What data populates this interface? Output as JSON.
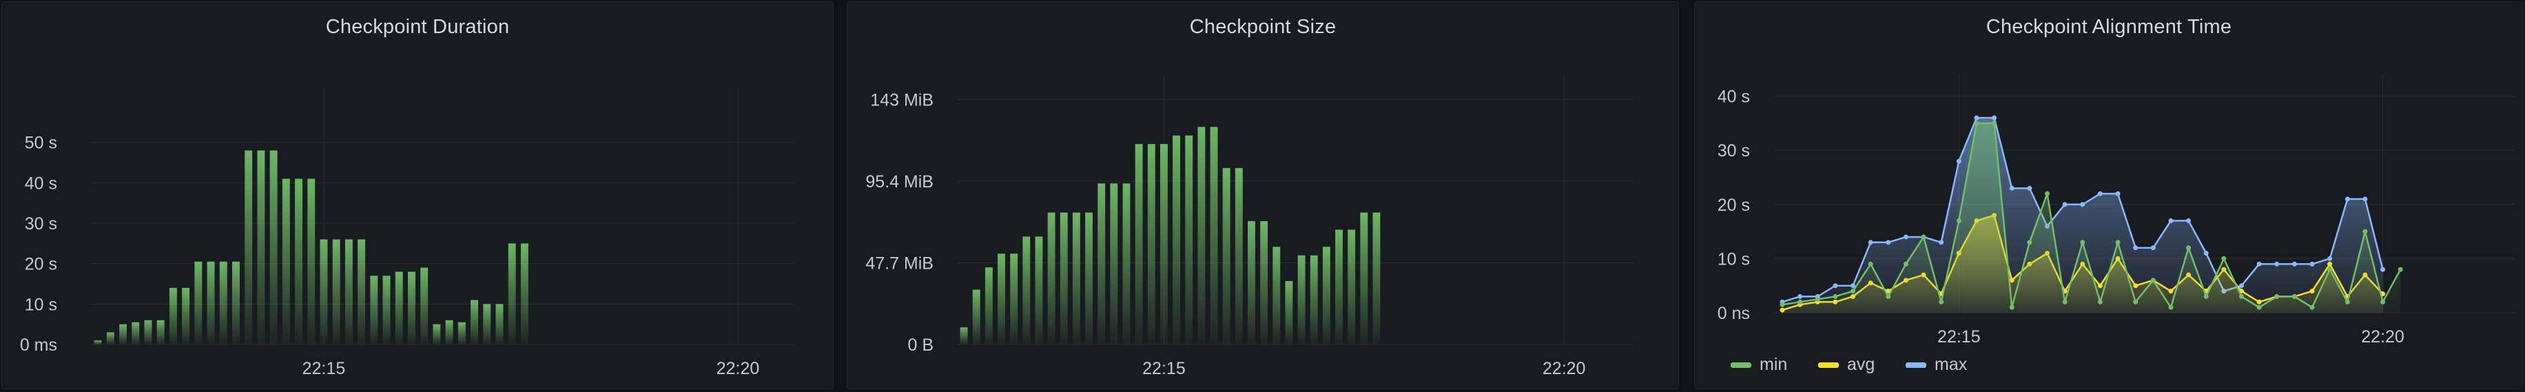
{
  "panels": [
    {
      "title": "Checkpoint Duration",
      "chart_data": {
        "type": "bar",
        "yunit": "s",
        "ylim": [
          0,
          60
        ],
        "yticks": [
          {
            "v": 0,
            "label": "0 ms"
          },
          {
            "v": 10,
            "label": "10 s"
          },
          {
            "v": 20,
            "label": "20 s"
          },
          {
            "v": 30,
            "label": "30 s"
          },
          {
            "v": 40,
            "label": "40 s"
          },
          {
            "v": 50,
            "label": "50 s"
          }
        ],
        "xticks": [
          {
            "index": 18,
            "label": "22:15"
          },
          {
            "index": 51,
            "label": "22:20"
          }
        ],
        "n_slots": 56,
        "values": [
          1,
          3,
          5,
          5.5,
          6,
          6,
          14,
          14,
          20.5,
          20.5,
          20.5,
          20.5,
          48,
          48,
          48,
          41,
          41,
          41,
          26,
          26,
          26,
          26,
          17,
          17,
          18,
          18,
          19,
          5,
          6,
          5.5,
          11,
          10,
          10,
          25,
          25
        ],
        "start_slot": 0,
        "color": "#73bf69",
        "grid": true,
        "legend": "none"
      }
    },
    {
      "title": "Checkpoint Size",
      "chart_data": {
        "type": "bar",
        "yunit": "MiB",
        "ylim": [
          0,
          150
        ],
        "yticks": [
          {
            "v": 0,
            "label": "0 B"
          },
          {
            "v": 47.7,
            "label": "47.7 MiB"
          },
          {
            "v": 95.4,
            "label": "95.4 MiB"
          },
          {
            "v": 143,
            "label": "143 MiB"
          }
        ],
        "xticks": [
          {
            "index": 16,
            "label": "22:15"
          },
          {
            "index": 48,
            "label": "22:20"
          }
        ],
        "n_slots": 54,
        "values": [
          10,
          32,
          45,
          53,
          53,
          63,
          63,
          77,
          77,
          77,
          77,
          94,
          94,
          94,
          117,
          117,
          117,
          122,
          122,
          127,
          127,
          103,
          103,
          72,
          72,
          57,
          37,
          52,
          52,
          57,
          67,
          67,
          77,
          77
        ],
        "start_slot": 0,
        "color": "#73bf69",
        "grid": true,
        "legend": "none"
      }
    },
    {
      "title": "Checkpoint Alignment Time",
      "chart_data": {
        "type": "area",
        "yunit": "s",
        "ylim": [
          0,
          43
        ],
        "yticks": [
          {
            "v": 0,
            "label": "0 ns"
          },
          {
            "v": 10,
            "label": "10 s"
          },
          {
            "v": 20,
            "label": "20 s"
          },
          {
            "v": 30,
            "label": "30 s"
          },
          {
            "v": 40,
            "label": "40 s"
          }
        ],
        "xticks": [
          {
            "index": 10,
            "label": "22:15"
          },
          {
            "index": 34,
            "label": "22:20"
          }
        ],
        "x_count": 42,
        "series": [
          {
            "name": "min",
            "color": "#73bf69",
            "values": [
              1.5,
              2,
              2.5,
              3,
              4,
              9,
              3,
              9,
              14,
              2,
              17,
              35,
              35,
              1,
              13,
              22,
              2,
              13,
              2,
              13,
              2,
              6,
              1,
              12,
              3,
              10,
              3,
              1,
              3,
              3,
              1,
              8,
              2,
              15,
              2,
              8,
              0,
              0,
              0,
              0,
              0,
              0
            ]
          },
          {
            "name": "avg",
            "color": "#fade2a",
            "values": [
              0.5,
              1.5,
              2,
              2,
              3,
              5.5,
              4,
              6,
              7,
              3.5,
              11,
              17,
              18,
              6,
              9,
              11,
              4,
              9,
              5,
              10,
              5,
              6,
              4,
              7,
              4,
              8,
              4,
              2,
              3,
              3,
              4,
              9,
              3,
              7,
              3.5,
              0,
              0,
              0,
              0,
              0,
              0,
              0
            ]
          },
          {
            "name": "max",
            "color": "#8ab8ff",
            "values": [
              2,
              3,
              3,
              5,
              5,
              13,
              13,
              14,
              14,
              13,
              28,
              36,
              36,
              23,
              23,
              16,
              20,
              20,
              22,
              22,
              12,
              12,
              17,
              17,
              11,
              4,
              5,
              9,
              9,
              9,
              9,
              10,
              21,
              21,
              8,
              0,
              0,
              0,
              0,
              0,
              0,
              0
            ]
          }
        ],
        "legend": "bottom-left",
        "grid": true
      }
    }
  ]
}
